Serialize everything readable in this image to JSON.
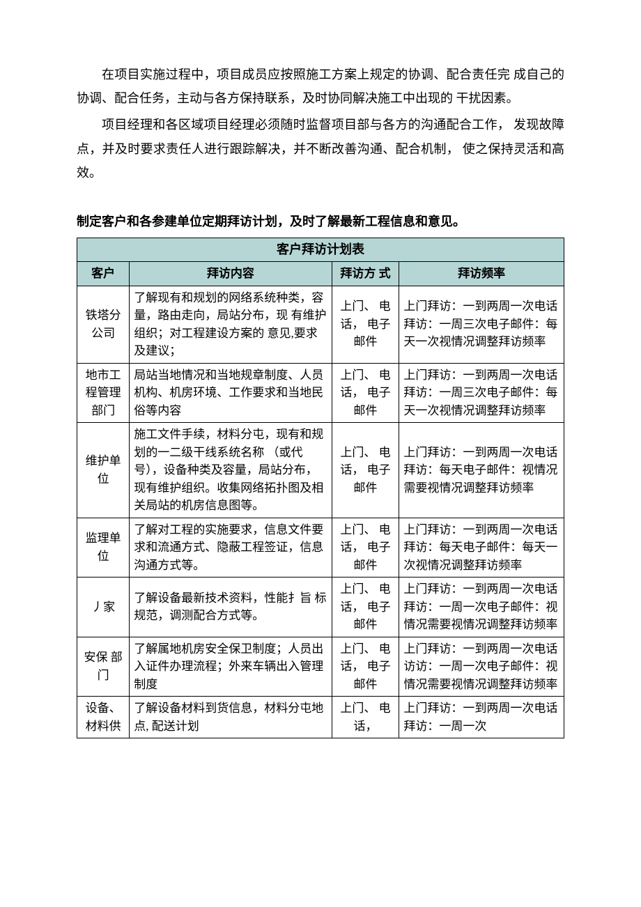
{
  "paragraphs": {
    "p1": "在项目实施过程中，项目成员应按照施工方案上规定的协调、配合责任完 成自己的协调、配合任务，主动与各方保持联系，及时协同解决施工中出现的 干扰因素。",
    "p2": "项目经理和各区域项目经理必须随时监督项目部与各方的沟通配合工作， 发现故障点，并及时要求责任人进行跟踪解决，并不断改善沟通、配合机制， 使之保持灵活和高效。"
  },
  "section_title": "制定客户和各参建单位定期拜访计划，及时了解最新工程信息和意见。",
  "table": {
    "title": "客户拜访计划表",
    "headers": {
      "customer": "客户",
      "content": "拜访内容",
      "method": "拜访方 式",
      "frequency": "拜访频率"
    },
    "rows": [
      {
        "customer": "铁塔分公司",
        "content": "了解现有和规划的网络系统种类，容量，路由走向，局站分布，现 有维护组织；对工程建设方案的 意见,要求及建议；",
        "method": "上门、 电话， 电子邮件",
        "frequency": "上门拜访：一到两周一次电话拜访：一周三次电子邮件：每天一次视情况调整拜访频率"
      },
      {
        "customer": "地市工程管理部门",
        "content": "局站当地情况和当地规章制度、人员机构、机房环境、工作要求和当地民俗等内容",
        "method": "上门、 电话， 电子邮件",
        "frequency": "上门拜访：一到两周一次电话拜访：一周三次电子邮件：每天一次视情况调整拜访频率"
      },
      {
        "customer": "维护单位",
        "content": "施工文件手续，材料分屯，现有和规划的一二级干线系统名称 （或代号），设备种类及容量，局站分布，现有维护组织。收集网络拓扑图及相关局站的机房信息图等。",
        "method": "上门、 电话， 电子邮件",
        "frequency": "上门拜访：一到两周一次电话拜访：每天电子邮件：视情况需要视情况调整拜访频率"
      },
      {
        "customer": "监理单位",
        "content": "了解对工程的实施要求，信息文件要求和流通方式、隐蔽工程签证，信息沟通方式等。",
        "method": "上门、 电话， 电子邮件",
        "frequency": "上门拜访：一到两周一次电话拜访：每天电子邮件：每天一次视情况调整拜访频率"
      },
      {
        "customer": "丿家",
        "content": "了解设备最新技术资料，性能扌旨 标规范，调测配合方式等。",
        "method": "上门、 电话， 电子邮件",
        "frequency": "上门拜访：一到两周一次电话拜访：一周一次电子邮件：视情况需要视情况调整拜访频率"
      },
      {
        "customer": "安保 部门",
        "content": "了解属地机房安全保卫制度；人员出入证件办理流程；外来车辆出入管理制度",
        "method": "上门、 电话， 电子邮件",
        "frequency": "上门拜访：一到两周一次电话访访：一周一次电子邮件：视情况需要视情况调整拜访频率"
      },
      {
        "customer": "设备、 材料供",
        "content": "了解设备材料到货信息，材料分屯地点, 配送计划",
        "method": "上门、 电话，",
        "frequency": "上门拜访：一到两周一次电话拜访：一周一次"
      }
    ],
    "colors": {
      "header_bg": "#b6d6d6",
      "border": "#000000",
      "text": "#000000",
      "page_bg": "#ffffff"
    }
  }
}
